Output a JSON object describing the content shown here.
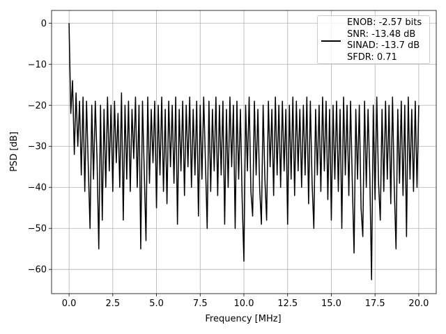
{
  "chart_data": {
    "type": "line",
    "xlabel": "Frequency [MHz]",
    "ylabel": "PSD [dB]",
    "xlim": [
      -1.0,
      21.0
    ],
    "ylim": [
      -65.9,
      3.1
    ],
    "xticks": [
      {
        "value": 0,
        "label": "0.0"
      },
      2.5,
      {
        "value": 5,
        "label": "5.0"
      },
      7.5,
      {
        "value": 10,
        "label": "10.0"
      },
      12.5,
      {
        "value": 15,
        "label": "15.0"
      },
      17.5,
      {
        "value": 20,
        "label": "20.0"
      }
    ],
    "yticks": [
      {
        "value": 0,
        "label": "0"
      },
      {
        "value": -10,
        "label": "−10"
      },
      {
        "value": -20,
        "label": "−20"
      },
      {
        "value": -30,
        "label": "−30"
      },
      {
        "value": -40,
        "label": "−40"
      },
      {
        "value": -50,
        "label": "−50"
      },
      {
        "value": -60,
        "label": "−60"
      }
    ],
    "grid": true,
    "legend": "upper right",
    "x": [
      0,
      0.1,
      0.2,
      0.3,
      0.4,
      0.5,
      0.6,
      0.7,
      0.8,
      0.9,
      1,
      1.1,
      1.2,
      1.3,
      1.4,
      1.5,
      1.6,
      1.7,
      1.8,
      1.9,
      2,
      2.1,
      2.2,
      2.3,
      2.4,
      2.5,
      2.6,
      2.7,
      2.8,
      2.9,
      3,
      3.1,
      3.2,
      3.3,
      3.4,
      3.5,
      3.6,
      3.7,
      3.8,
      3.9,
      4,
      4.1,
      4.2,
      4.3,
      4.4,
      4.5,
      4.6,
      4.7,
      4.8,
      4.9,
      5,
      5.1,
      5.2,
      5.3,
      5.4,
      5.5,
      5.6,
      5.7,
      5.8,
      5.9,
      6,
      6.1,
      6.2,
      6.3,
      6.4,
      6.5,
      6.6,
      6.7,
      6.8,
      6.9,
      7,
      7.1,
      7.2,
      7.3,
      7.4,
      7.5,
      7.6,
      7.7,
      7.8,
      7.9,
      8,
      8.1,
      8.2,
      8.3,
      8.4,
      8.5,
      8.6,
      8.7,
      8.8,
      8.9,
      9,
      9.1,
      9.2,
      9.3,
      9.4,
      9.5,
      9.6,
      9.7,
      9.8,
      9.9,
      10,
      10.1,
      10.2,
      10.3,
      10.4,
      10.5,
      10.6,
      10.7,
      10.8,
      10.9,
      11,
      11.1,
      11.2,
      11.3,
      11.4,
      11.5,
      11.6,
      11.7,
      11.8,
      11.9,
      12,
      12.1,
      12.2,
      12.3,
      12.4,
      12.5,
      12.6,
      12.7,
      12.8,
      12.9,
      13,
      13.1,
      13.2,
      13.3,
      13.4,
      13.5,
      13.6,
      13.7,
      13.8,
      13.9,
      14,
      14.1,
      14.2,
      14.3,
      14.4,
      14.5,
      14.6,
      14.7,
      14.8,
      14.9,
      15,
      15.1,
      15.2,
      15.3,
      15.4,
      15.5,
      15.6,
      15.7,
      15.8,
      15.9,
      16,
      16.1,
      16.2,
      16.3,
      16.4,
      16.5,
      16.6,
      16.7,
      16.8,
      16.9,
      17,
      17.1,
      17.2,
      17.3,
      17.4,
      17.5,
      17.6,
      17.7,
      17.8,
      17.9,
      18,
      18.1,
      18.2,
      18.3,
      18.4,
      18.5,
      18.6,
      18.7,
      18.8,
      18.9,
      19,
      19.1,
      19.2,
      19.3,
      19.4,
      19.5,
      19.6,
      19.7,
      19.8,
      19.9,
      20
    ],
    "series": [
      {
        "name": "ENOB: -2.57 bits\nSNR: -13.48 dB\nSINAD: -13.7 dB\nSFDR: 0.71",
        "color": "#000000",
        "values": [
          0,
          -22,
          -14,
          -32,
          -17,
          -30,
          -19,
          -37,
          -18,
          -41,
          -19,
          -35,
          -50,
          -20,
          -38,
          -19,
          -33,
          -55,
          -20,
          -48,
          -21,
          -40,
          -18,
          -36,
          -20,
          -41,
          -19,
          -34,
          -22,
          -40,
          -17,
          -48,
          -20,
          -38,
          -19,
          -41,
          -21,
          -33,
          -18,
          -40,
          -20,
          -55,
          -19,
          -36,
          -53,
          -18,
          -39,
          -21,
          -34,
          -19,
          -45,
          -20,
          -37,
          -18,
          -41,
          -21,
          -44,
          -19,
          -35,
          -20,
          -39,
          -18,
          -49,
          -21,
          -36,
          -19,
          -42,
          -20,
          -35,
          -18,
          -40,
          -21,
          -37,
          -19,
          -47,
          -20,
          -38,
          -18,
          -34,
          -50,
          -19,
          -41,
          -21,
          -36,
          -18,
          -42,
          -20,
          -37,
          -19,
          -49,
          -21,
          -40,
          -18,
          -35,
          -20,
          -50,
          -19,
          -38,
          -21,
          -43,
          -58,
          -20,
          -36,
          -18,
          -41,
          -47,
          -19,
          -37,
          -21,
          -40,
          -49,
          -20,
          -38,
          -48,
          -19,
          -35,
          -21,
          -42,
          -18,
          -37,
          -20,
          -40,
          -19,
          -36,
          -21,
          -49,
          -20,
          -38,
          -18,
          -42,
          -19,
          -36,
          -21,
          -40,
          -20,
          -37,
          -18,
          -44,
          -19,
          -39,
          -50,
          -21,
          -37,
          -20,
          -41,
          -18,
          -36,
          -19,
          -43,
          -21,
          -48,
          -20,
          -38,
          -19,
          -41,
          -21,
          -50,
          -18,
          -37,
          -20,
          -42,
          -19,
          -39,
          -56,
          -21,
          -38,
          -20,
          -45,
          -52,
          -19,
          -40,
          -21,
          -37,
          -62.5,
          -20,
          -43,
          -18,
          -39,
          -48,
          -21,
          -41,
          -19,
          -38,
          -20,
          -44,
          -18,
          -40,
          -55,
          -21,
          -39,
          -19,
          -42,
          -20,
          -52,
          -18,
          -38,
          -21,
          -41,
          -19,
          -40,
          -20
        ]
      }
    ]
  }
}
